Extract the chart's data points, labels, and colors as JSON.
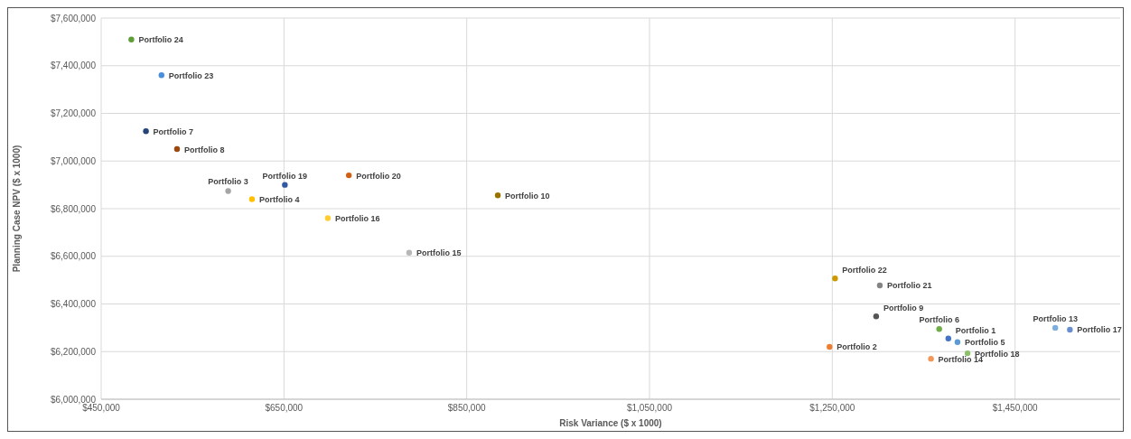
{
  "chart_data": {
    "type": "scatter",
    "xlabel": "Risk Variance ($ x 1000)",
    "ylabel": "Planning Case NPV ($ x 1000)",
    "xlim": [
      450000,
      1565000
    ],
    "ylim": [
      6000000,
      7600000
    ],
    "xticks": [
      {
        "value": 450000,
        "label": "$450,000"
      },
      {
        "value": 650000,
        "label": "$650,000"
      },
      {
        "value": 850000,
        "label": "$850,000"
      },
      {
        "value": 1050000,
        "label": "$1,050,000"
      },
      {
        "value": 1250000,
        "label": "$1,250,000"
      },
      {
        "value": 1450000,
        "label": "$1,450,000"
      }
    ],
    "yticks": [
      {
        "value": 6000000,
        "label": "$6,000,000"
      },
      {
        "value": 6200000,
        "label": "$6,200,000"
      },
      {
        "value": 6400000,
        "label": "$6,400,000"
      },
      {
        "value": 6600000,
        "label": "$6,600,000"
      },
      {
        "value": 6800000,
        "label": "$6,800,000"
      },
      {
        "value": 7000000,
        "label": "$7,000,000"
      },
      {
        "value": 7200000,
        "label": "$7,200,000"
      },
      {
        "value": 7400000,
        "label": "$7,400,000"
      },
      {
        "value": 7600000,
        "label": "$7,600,000"
      }
    ],
    "grid": true,
    "marker": "circle",
    "series": [
      {
        "name": "Portfolio 1",
        "color": "#4472c4",
        "x": [
          1377000
        ],
        "values": [
          6255000
        ]
      },
      {
        "name": "Portfolio 2",
        "color": "#ed7d31",
        "x": [
          1247000
        ],
        "values": [
          6220000
        ]
      },
      {
        "name": "Portfolio 3",
        "color": "#a5a5a5",
        "x": [
          589000
        ],
        "values": [
          6874000
        ]
      },
      {
        "name": "Portfolio 4",
        "color": "#ffc000",
        "x": [
          615000
        ],
        "values": [
          6840000
        ]
      },
      {
        "name": "Portfolio 5",
        "color": "#5b9bd5",
        "x": [
          1387000
        ],
        "values": [
          6240000
        ]
      },
      {
        "name": "Portfolio 6",
        "color": "#70ad47",
        "x": [
          1367000
        ],
        "values": [
          6295000
        ]
      },
      {
        "name": "Portfolio 7",
        "color": "#264478",
        "x": [
          499000
        ],
        "values": [
          7125000
        ]
      },
      {
        "name": "Portfolio 8",
        "color": "#9e480e",
        "x": [
          533000
        ],
        "values": [
          7050000
        ]
      },
      {
        "name": "Portfolio 9",
        "color": "#555555",
        "x": [
          1298000
        ],
        "values": [
          6348000
        ]
      },
      {
        "name": "Portfolio 10",
        "color": "#997300",
        "x": [
          884000
        ],
        "values": [
          6856000
        ]
      },
      {
        "name": "Portfolio 13",
        "color": "#7cafdd",
        "x": [
          1494000
        ],
        "values": [
          6300000
        ]
      },
      {
        "name": "Portfolio 14",
        "color": "#f1975a",
        "x": [
          1358000
        ],
        "values": [
          6170000
        ]
      },
      {
        "name": "Portfolio 15",
        "color": "#b7b7b7",
        "x": [
          787000
        ],
        "values": [
          6615000
        ]
      },
      {
        "name": "Portfolio 16",
        "color": "#ffcd33",
        "x": [
          698000
        ],
        "values": [
          6760000
        ]
      },
      {
        "name": "Portfolio 17",
        "color": "#698ed0",
        "x": [
          1510000
        ],
        "values": [
          6292000
        ]
      },
      {
        "name": "Portfolio 18",
        "color": "#8cc168",
        "x": [
          1398000
        ],
        "values": [
          6193000
        ]
      },
      {
        "name": "Portfolio 19",
        "color": "#335aa1",
        "x": [
          651000
        ],
        "values": [
          6900000
        ]
      },
      {
        "name": "Portfolio 20",
        "color": "#d26012",
        "x": [
          721000
        ],
        "values": [
          6940000
        ]
      },
      {
        "name": "Portfolio 21",
        "color": "#848484",
        "x": [
          1302000
        ],
        "values": [
          6478000
        ]
      },
      {
        "name": "Portfolio 22",
        "color": "#cc9a00",
        "x": [
          1253000
        ],
        "values": [
          6507000
        ]
      },
      {
        "name": "Portfolio 23",
        "color": "#4a8fd9",
        "x": [
          516000
        ],
        "values": [
          7360000
        ]
      },
      {
        "name": "Portfolio 24",
        "color": "#5e9e37",
        "x": [
          483000
        ],
        "values": [
          7510000
        ]
      }
    ]
  }
}
